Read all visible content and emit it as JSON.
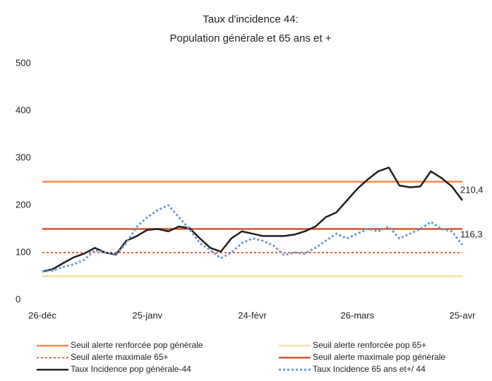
{
  "chart_data": {
    "type": "line",
    "title": "Taux d'incidence 44:",
    "subtitle": "Population générale et 65 ans et +",
    "categories": [
      "26-déc",
      null,
      null,
      null,
      null,
      null,
      null,
      null,
      null,
      null,
      "25-janv",
      null,
      null,
      null,
      null,
      null,
      null,
      null,
      null,
      null,
      "24-févr",
      null,
      null,
      null,
      null,
      null,
      null,
      null,
      null,
      null,
      "26-mars",
      null,
      null,
      null,
      null,
      null,
      null,
      null,
      null,
      null,
      "25-avr"
    ],
    "ylim": [
      0,
      500
    ],
    "yticks": [
      0,
      100,
      200,
      300,
      400,
      500
    ],
    "grid": false,
    "series": [
      {
        "name": "Seuil alerte renforcée pop générale",
        "color": "#f08a4b",
        "dash": false,
        "width": 2.5,
        "values": [
          250,
          250,
          250,
          250,
          250,
          250,
          250,
          250,
          250,
          250,
          250,
          250,
          250,
          250,
          250,
          250,
          250,
          250,
          250,
          250,
          250,
          250,
          250,
          250,
          250,
          250,
          250,
          250,
          250,
          250,
          250,
          250,
          250,
          250,
          250,
          250,
          250,
          250,
          250,
          250,
          250
        ]
      },
      {
        "name": "Seuil alerte renforcée pop 65+",
        "color": "#f3e3a4",
        "dash": false,
        "width": 2.5,
        "values": [
          50,
          50,
          50,
          50,
          50,
          50,
          50,
          50,
          50,
          50,
          50,
          50,
          50,
          50,
          50,
          50,
          50,
          50,
          50,
          50,
          50,
          50,
          50,
          50,
          50,
          50,
          50,
          50,
          50,
          50,
          50,
          50,
          50,
          50,
          50,
          50,
          50,
          50,
          50,
          50,
          50
        ]
      },
      {
        "name": "Seuil alerte maximale 65+",
        "color": "#e8663f",
        "dash": true,
        "width": 2,
        "values": [
          100,
          100,
          100,
          100,
          100,
          100,
          100,
          100,
          100,
          100,
          100,
          100,
          100,
          100,
          100,
          100,
          100,
          100,
          100,
          100,
          100,
          100,
          100,
          100,
          100,
          100,
          100,
          100,
          100,
          100,
          100,
          100,
          100,
          100,
          100,
          100,
          100,
          100,
          100,
          100,
          100
        ]
      },
      {
        "name": "Seuil alerte maximale pop générale",
        "color": "#d4532a",
        "dash": false,
        "width": 2.5,
        "values": [
          150,
          150,
          150,
          150,
          150,
          150,
          150,
          150,
          150,
          150,
          150,
          150,
          150,
          150,
          150,
          150,
          150,
          150,
          150,
          150,
          150,
          150,
          150,
          150,
          150,
          150,
          150,
          150,
          150,
          150,
          150,
          150,
          150,
          150,
          150,
          150,
          150,
          150,
          150,
          150,
          150
        ]
      },
      {
        "name": "Taux Incidence pop générale-44",
        "color": "#1e1e1e",
        "dash": false,
        "width": 2.5,
        "values": [
          60,
          65,
          78,
          90,
          98,
          110,
          100,
          96,
          125,
          135,
          148,
          150,
          145,
          155,
          152,
          130,
          110,
          102,
          130,
          145,
          140,
          135,
          135,
          135,
          138,
          145,
          155,
          175,
          185,
          210,
          235,
          255,
          272,
          280,
          242,
          238,
          240,
          272,
          258,
          240,
          210.4
        ],
        "value_labels": [
          null,
          null,
          null,
          null,
          null,
          null,
          null,
          null,
          null,
          null,
          null,
          null,
          null,
          null,
          null,
          null,
          null,
          null,
          null,
          null,
          null,
          null,
          null,
          null,
          null,
          null,
          null,
          null,
          null,
          null,
          null,
          null,
          null,
          null,
          null,
          null,
          null,
          null,
          null,
          null,
          "210,4"
        ]
      },
      {
        "name": "Taux Incidence 65 ans et+/ 44",
        "color": "#6f9bc6",
        "dash": true,
        "width": 3,
        "values": [
          60,
          62,
          70,
          75,
          85,
          105,
          100,
          95,
          120,
          155,
          175,
          190,
          200,
          175,
          150,
          120,
          105,
          88,
          100,
          120,
          130,
          125,
          115,
          95,
          100,
          98,
          110,
          125,
          140,
          130,
          140,
          150,
          145,
          155,
          130,
          140,
          150,
          165,
          150,
          145,
          116.3
        ],
        "value_labels": [
          null,
          null,
          null,
          null,
          null,
          null,
          null,
          null,
          null,
          null,
          null,
          null,
          null,
          null,
          null,
          null,
          null,
          null,
          null,
          null,
          null,
          null,
          null,
          null,
          null,
          null,
          null,
          null,
          null,
          null,
          null,
          null,
          null,
          null,
          null,
          null,
          null,
          null,
          null,
          null,
          "116,3"
        ]
      }
    ]
  }
}
